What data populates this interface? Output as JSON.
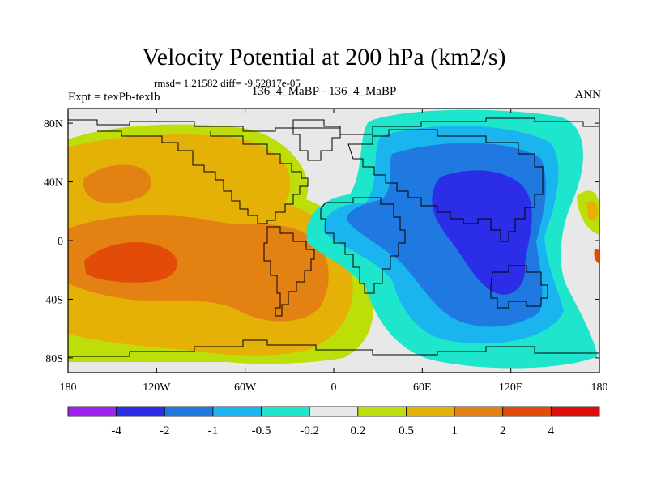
{
  "title": "Velocity Potential at 200 hPa (km2/s)",
  "stats": "rmsd= 1.21582 diff= -9.52817e-05",
  "expt": "Expt = texPb-texlb",
  "case": "136_4_MaBP - 136_4_MaBP",
  "season": "ANN",
  "map": {
    "lon_range": [
      -180,
      180
    ],
    "lat_range": [
      -90,
      90
    ],
    "lon_ticks": [
      "180",
      "120W",
      "60W",
      "0",
      "60E",
      "120E",
      "180"
    ],
    "lat_ticks": [
      "80N",
      "40N",
      "0",
      "40S",
      "80S"
    ],
    "lon_tick_values": [
      -180,
      -120,
      -60,
      0,
      60,
      120,
      180
    ],
    "lat_tick_values": [
      80,
      40,
      0,
      -40,
      -80
    ]
  },
  "colorbar": {
    "colors": [
      "#9f22f0",
      "#2b2ee6",
      "#1f79e0",
      "#1ab4ef",
      "#1ee6cd",
      "#e8e8e8",
      "#bede0a",
      "#e6b106",
      "#e38212",
      "#e24c08",
      "#e00e0a"
    ],
    "labels": [
      "-4",
      "-2",
      "-1",
      "-0.5",
      "-0.2",
      "0.2",
      "0.5",
      "1",
      "2",
      "4"
    ]
  }
}
